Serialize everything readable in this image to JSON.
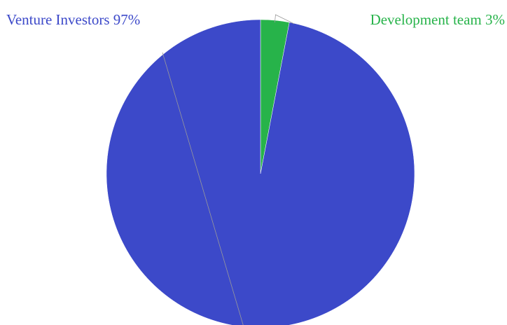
{
  "chart_data": {
    "type": "pie",
    "slices": [
      {
        "name": "Development team",
        "value": 3,
        "label": "Development team 3%",
        "color": "#27b34a"
      },
      {
        "name": "Venture Investors",
        "value": 97,
        "label": "Venture Investors 97%",
        "color": "#3c49c9"
      }
    ],
    "legend": "none"
  }
}
